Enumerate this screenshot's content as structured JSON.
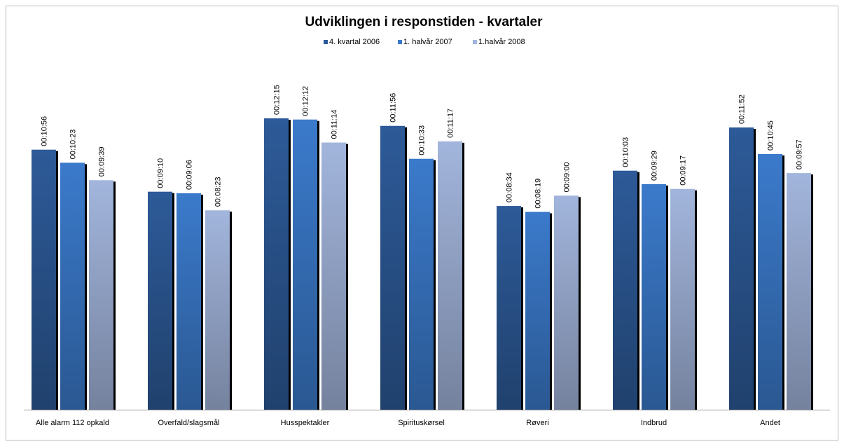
{
  "chart_data": {
    "type": "bar",
    "title": "Udviklingen i responstiden - kvartaler",
    "categories": [
      "Alle alarm 112 opkald",
      "Overfald/slagsmål",
      "Husspektakler",
      "Spirituskørsel",
      "Røveri",
      "Indbrud",
      "Andet"
    ],
    "series": [
      {
        "name": "4. kvartal 2006",
        "color": "#2d5a98",
        "values": [
          656,
          550,
          735,
          716,
          514,
          603,
          712
        ],
        "value_labels": [
          "00:10:56",
          "00:09:10",
          "00:12:15",
          "00:11:56",
          "00:08:34",
          "00:10:03",
          "00:11:52"
        ]
      },
      {
        "name": "1. halvår 2007",
        "color": "#3b7acb",
        "values": [
          623,
          546,
          732,
          633,
          499,
          569,
          645
        ],
        "value_labels": [
          "00:10:23",
          "00:09:06",
          "00:12:12",
          "00:10:33",
          "00:08:19",
          "00:09:29",
          "00:10:45"
        ]
      },
      {
        "name": "1.halvår 2008",
        "color": "#a2b5dc",
        "values": [
          579,
          503,
          674,
          677,
          540,
          557,
          597
        ],
        "value_labels": [
          "00:09:39",
          "00:08:23",
          "00:11:14",
          "00:11:17",
          "00:09:00",
          "00:09:17",
          "00:09:57"
        ]
      }
    ],
    "legend": "top"
  }
}
